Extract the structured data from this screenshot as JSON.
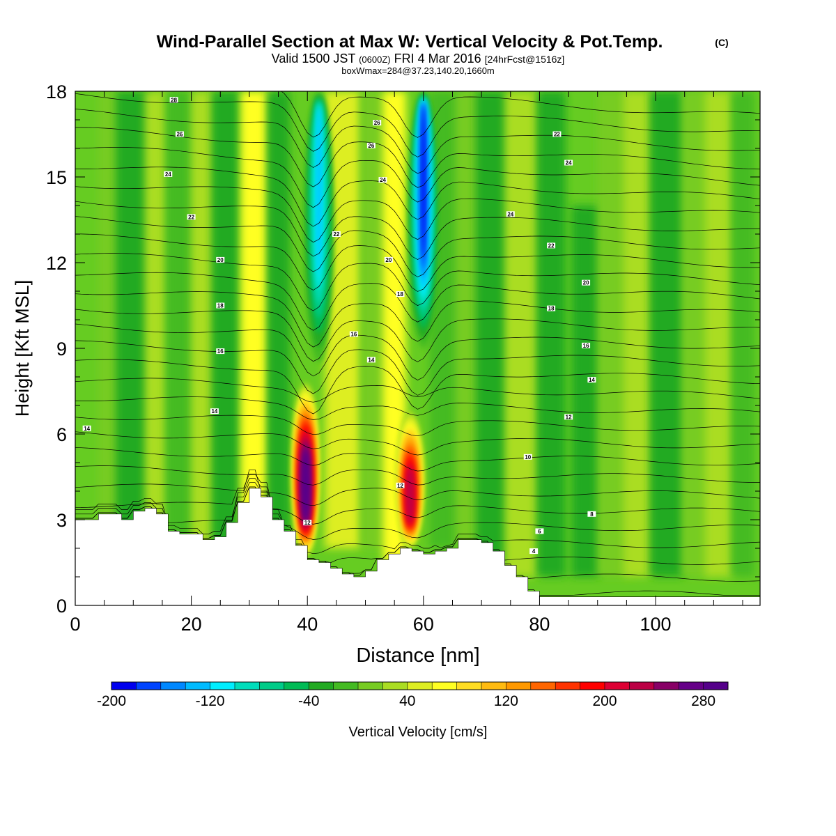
{
  "title": {
    "main": "Wind-Parallel Section at Max W: Vertical Velocity & Pot.Temp.",
    "copyright": "(C)",
    "valid_prefix": "Valid 1500 JST",
    "zulu": "(0600Z)",
    "valid_date": "FRI 4 Mar 2016",
    "forecast": "[24hrFcst@1516z]",
    "boxinfo": "boxWmax=284@37.23,140.20,1660m"
  },
  "chart_data": {
    "type": "heatmap",
    "xlabel": "Distance [nm]",
    "ylabel": "Height [Kft MSL]",
    "xlim": [
      0,
      118
    ],
    "ylim": [
      0,
      18
    ],
    "x_ticks": [
      "0",
      "20",
      "40",
      "60",
      "80",
      "100"
    ],
    "x_tick_values": [
      0,
      20,
      40,
      60,
      80,
      100
    ],
    "y_ticks": [
      "0",
      "3",
      "6",
      "9",
      "12",
      "15",
      "18"
    ],
    "y_tick_values": [
      0,
      3,
      6,
      9,
      12,
      15,
      18
    ],
    "colorbar": {
      "label": "Vertical Velocity [cm/s]",
      "min": -200,
      "max": 300,
      "step": 20,
      "tick_labels": [
        "-200",
        "-120",
        "-40",
        "40",
        "120",
        "200",
        "280"
      ],
      "tick_values": [
        -200,
        -120,
        -40,
        40,
        120,
        200,
        280
      ],
      "colors": [
        "#0000ee",
        "#0044ff",
        "#0088ff",
        "#00bbff",
        "#00eeff",
        "#00ddbb",
        "#00cc88",
        "#00bb55",
        "#22aa22",
        "#44bb22",
        "#77cc22",
        "#aadd22",
        "#ddee22",
        "#ffff22",
        "#ffdd22",
        "#ffbb11",
        "#ff9900",
        "#ff6600",
        "#ff3300",
        "#ff0000",
        "#dd0033",
        "#bb0044",
        "#880066",
        "#660088",
        "#55008a"
      ]
    },
    "updrafts": [
      {
        "x": 40,
        "z_bottom": 1.7,
        "z_top": 7.8,
        "w_max": 284
      },
      {
        "x": 58,
        "z_bottom": 2.0,
        "z_top": 6.8,
        "w_max": 220
      }
    ],
    "downdrafts": [
      {
        "x": 42,
        "z_bottom": 8.5,
        "z_top": 18,
        "w_min": -140
      },
      {
        "x": 60,
        "z_bottom": 9.0,
        "z_top": 18,
        "w_min": -200
      }
    ],
    "terrain": {
      "x": [
        0,
        4,
        8,
        10,
        12,
        14,
        16,
        18,
        20,
        22,
        24,
        26,
        28,
        30,
        32,
        34,
        36,
        38,
        40,
        42,
        44,
        46,
        48,
        50,
        52,
        54,
        56,
        58,
        60,
        62,
        64,
        66,
        68,
        70,
        72,
        74,
        76,
        78,
        80,
        84,
        90,
        100,
        110,
        118
      ],
      "z": [
        3.0,
        3.2,
        3.0,
        3.3,
        3.4,
        3.2,
        2.6,
        2.5,
        2.5,
        2.3,
        2.4,
        2.9,
        3.6,
        4.1,
        3.8,
        3.0,
        2.6,
        2.1,
        1.6,
        1.5,
        1.3,
        1.1,
        1.0,
        1.2,
        1.6,
        1.8,
        2.0,
        1.9,
        1.8,
        1.9,
        2.0,
        2.3,
        2.3,
        2.2,
        1.9,
        1.4,
        1.0,
        0.5,
        0.3,
        0.3,
        0.3,
        0.3,
        0.3,
        0.3
      ]
    },
    "isentrope_labels": [
      {
        "text": "14",
        "x": 2,
        "y": 6.2
      },
      {
        "text": "28",
        "x": 17,
        "y": 17.7
      },
      {
        "text": "26",
        "x": 18,
        "y": 16.5
      },
      {
        "text": "24",
        "x": 16,
        "y": 15.1
      },
      {
        "text": "22",
        "x": 20,
        "y": 13.6
      },
      {
        "text": "20",
        "x": 25,
        "y": 12.1
      },
      {
        "text": "18",
        "x": 25,
        "y": 10.5
      },
      {
        "text": "16",
        "x": 25,
        "y": 8.9
      },
      {
        "text": "14",
        "x": 24,
        "y": 6.8
      },
      {
        "text": "26",
        "x": 52,
        "y": 16.9
      },
      {
        "text": "26",
        "x": 51,
        "y": 16.1
      },
      {
        "text": "24",
        "x": 53,
        "y": 14.9
      },
      {
        "text": "22",
        "x": 45,
        "y": 13.0
      },
      {
        "text": "20",
        "x": 54,
        "y": 12.1
      },
      {
        "text": "18",
        "x": 56,
        "y": 10.9
      },
      {
        "text": "16",
        "x": 48,
        "y": 9.5
      },
      {
        "text": "14",
        "x": 51,
        "y": 8.6
      },
      {
        "text": "12",
        "x": 40,
        "y": 2.9
      },
      {
        "text": "12",
        "x": 56,
        "y": 4.2
      },
      {
        "text": "22",
        "x": 83,
        "y": 16.5
      },
      {
        "text": "24",
        "x": 85,
        "y": 15.5
      },
      {
        "text": "24",
        "x": 75,
        "y": 13.7
      },
      {
        "text": "22",
        "x": 82,
        "y": 12.6
      },
      {
        "text": "20",
        "x": 88,
        "y": 11.3
      },
      {
        "text": "18",
        "x": 82,
        "y": 10.4
      },
      {
        "text": "16",
        "x": 88,
        "y": 9.1
      },
      {
        "text": "14",
        "x": 89,
        "y": 7.9
      },
      {
        "text": "12",
        "x": 85,
        "y": 6.6
      },
      {
        "text": "10",
        "x": 78,
        "y": 5.2
      },
      {
        "text": "8",
        "x": 89,
        "y": 3.2
      },
      {
        "text": "6",
        "x": 80,
        "y": 2.6
      },
      {
        "text": "4",
        "x": 79,
        "y": 1.9
      }
    ]
  }
}
